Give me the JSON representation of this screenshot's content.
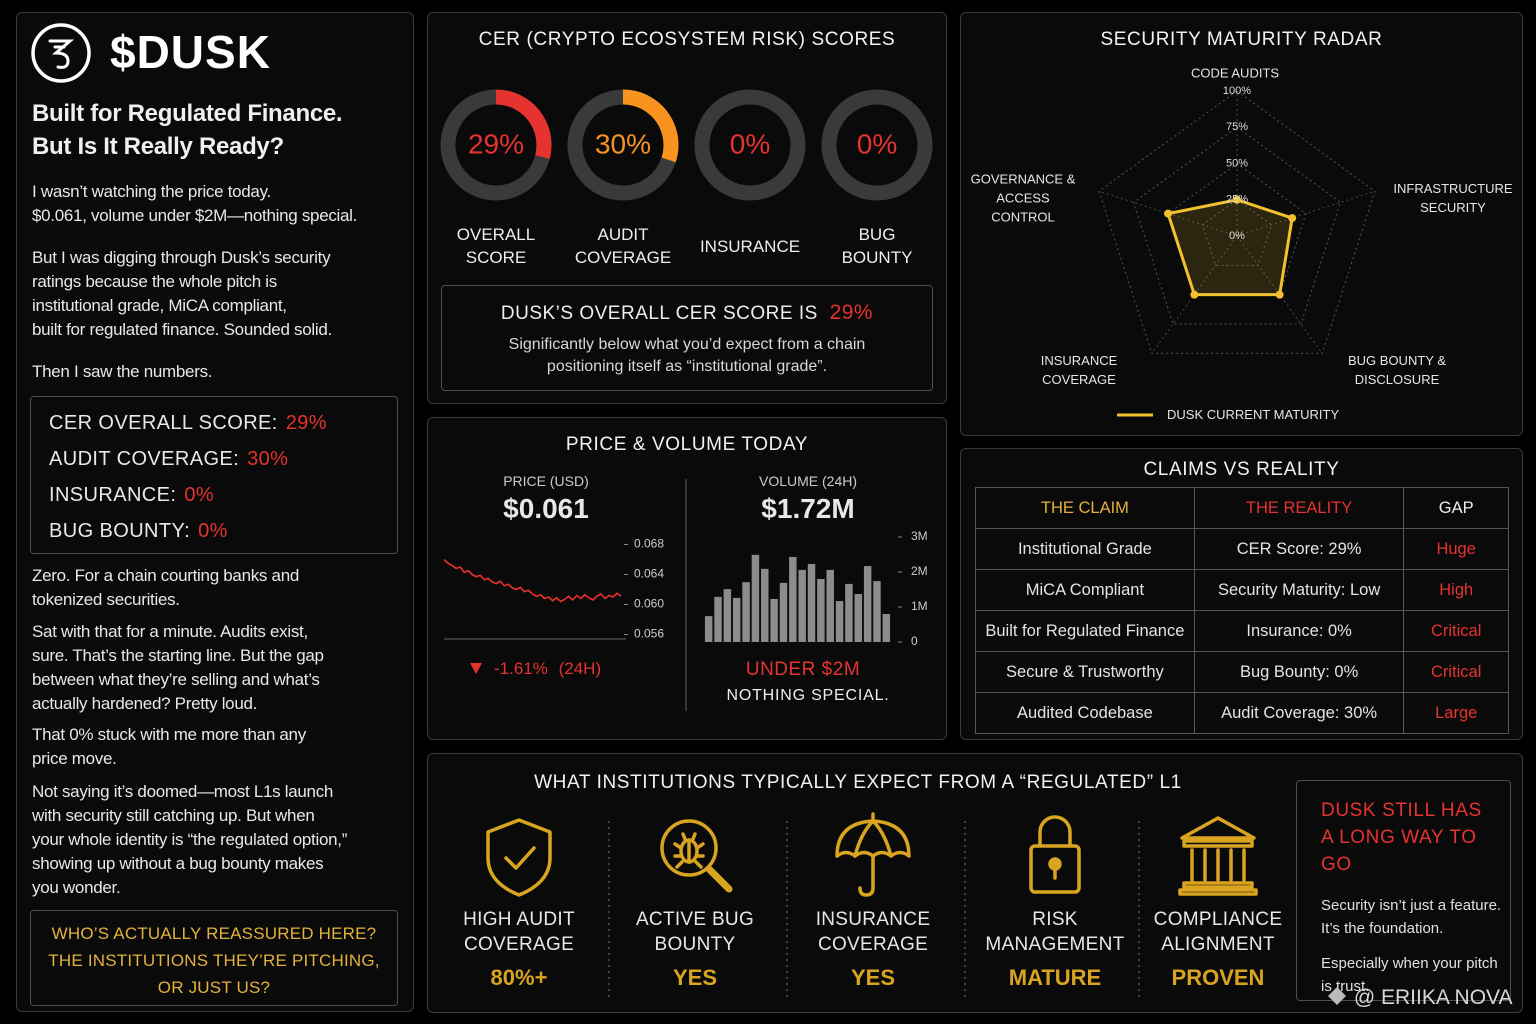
{
  "left": {
    "logo": "$DUSK",
    "heading": [
      "Built for Regulated Finance.",
      "But Is It Really Ready?"
    ],
    "paragraphs": [
      [
        "I wasn’t watching the price today.",
        "$0.061, volume under $2M—nothing special."
      ],
      [
        "But I was digging through Dusk’s security",
        "ratings because the whole pitch is",
        "institutional grade, MiCA compliant,",
        "built for regulated finance. Sounded solid."
      ],
      [
        "Then I saw the numbers."
      ]
    ],
    "scores": [
      {
        "label": "CER OVERALL SCORE:",
        "value": "29%"
      },
      {
        "label": "AUDIT COVERAGE:",
        "value": "30%"
      },
      {
        "label": "INSURANCE:",
        "value": "0%"
      },
      {
        "label": "BUG BOUNTY:",
        "value": "0%"
      }
    ],
    "paragraphs_after": [
      [
        "Zero. For a chain courting banks and",
        "tokenized securities."
      ],
      [
        "Sat with that for a minute. Audits exist,",
        "sure. That’s the starting line. But the gap",
        "between what they’re selling and what’s",
        "actually hardened? Pretty loud."
      ],
      [
        "That 0% stuck with me more than any",
        "price move."
      ],
      [
        "Not saying it’s doomed—most L1s launch",
        "with security still catching up. But when",
        "your whole identity is “the regulated option,”",
        "showing up without a bug bounty makes",
        "you wonder."
      ]
    ],
    "callout": [
      "WHO’S ACTUALLY REASSURED HERE?",
      "THE INSTITUTIONS THEY’RE PITCHING,",
      "OR JUST US?"
    ]
  },
  "cer_panel": {
    "summary_label": "DUSK’S OVERALL CER SCORE IS",
    "summary_value": "29%",
    "summary_text": [
      "Significantly below what you’d expect from a chain",
      "positioning itself as “institutional grade”."
    ]
  },
  "price_panel": {
    "title": "PRICE & VOLUME TODAY",
    "price_label": "PRICE (USD)",
    "price": "$0.061",
    "change": "-1.61%",
    "change_period": "(24H)",
    "volume_label": "VOLUME (24H)",
    "volume": "$1.72M",
    "volume_note": "UNDER $2M",
    "volume_comment": "NOTHING SPECIAL."
  },
  "claims": {
    "title": "CLAIMS VS REALITY",
    "header": [
      "THE CLAIM",
      "THE REALITY",
      "GAP"
    ],
    "rows": [
      [
        "Institutional Grade",
        "CER Score: 29%",
        "Huge"
      ],
      [
        "MiCA Compliant",
        "Security Maturity: Low",
        "High"
      ],
      [
        "Built for Regulated Finance",
        "Insurance: 0%",
        "Critical"
      ],
      [
        "Secure & Trustworthy",
        "Bug Bounty: 0%",
        "Critical"
      ],
      [
        "Audited Codebase",
        "Audit Coverage: 30%",
        "Large"
      ]
    ]
  },
  "expectations": {
    "title": "WHAT INSTITUTIONS TYPICALLY EXPECT FROM A “REGULATED” L1",
    "items": [
      {
        "label": [
          "HIGH AUDIT",
          "COVERAGE"
        ],
        "value": "80%+"
      },
      {
        "label": [
          "ACTIVE BUG",
          "BOUNTY"
        ],
        "value": "YES"
      },
      {
        "label": [
          "INSURANCE",
          "COVERAGE"
        ],
        "value": "YES"
      },
      {
        "label": [
          "RISK",
          "MANAGEMENT"
        ],
        "value": "MATURE"
      },
      {
        "label": [
          "COMPLIANCE",
          "ALIGNMENT"
        ],
        "value": "PROVEN"
      }
    ],
    "callout": {
      "title": [
        "DUSK STILL HAS",
        "A LONG WAY TO GO"
      ],
      "text": [
        [
          "Security isn’t just a feature.",
          "It’s the foundation."
        ],
        [
          "Especially when your pitch",
          "is trust."
        ]
      ]
    }
  },
  "watermark": "@ ERIIKA NOVA",
  "chart_data": [
    {
      "type": "gauge",
      "title": "CER (CRYPTO ECOSYSTEM RISK) SCORES",
      "categories": [
        "OVERALL SCORE",
        "AUDIT COVERAGE",
        "INSURANCE",
        "BUG BOUNTY"
      ],
      "values": [
        29,
        30,
        0,
        0
      ],
      "value_labels": [
        "29%",
        "30%",
        "0%",
        "0%"
      ],
      "colors": [
        "#e5332f",
        "#f7931e",
        "#e5332f",
        "#e5332f"
      ],
      "ylim": [
        0,
        100
      ]
    },
    {
      "type": "radar",
      "title": "SECURITY MATURITY RADAR",
      "categories": [
        "CODE AUDITS",
        "INFRASTRUCTURE SECURITY",
        "BUG BOUNTY & DISCLOSURE",
        "INSURANCE COVERAGE",
        "GOVERNANCE & ACCESS CONTROL"
      ],
      "ylim": [
        0,
        100
      ],
      "yticks": [
        {
          "value": 0,
          "label": "0%"
        },
        {
          "value": 25,
          "label": "25%"
        },
        {
          "value": 50,
          "label": "50%"
        },
        {
          "value": 75,
          "label": "75%"
        },
        {
          "value": 100,
          "label": "100%"
        }
      ],
      "series": [
        {
          "name": "DUSK CURRENT MATURITY",
          "color": "#f2c12e",
          "values": [
            25,
            40,
            50,
            50,
            50
          ]
        }
      ]
    },
    {
      "type": "line",
      "color": "#e8302e",
      "ylim": [
        0.055,
        0.069
      ],
      "yticks": [
        0.056,
        {
          "value": 0.06,
          "label": "0.060"
        },
        0.064,
        0.068
      ],
      "values": [
        0.066,
        0.0655,
        0.0652,
        0.0648,
        0.065,
        0.0643,
        0.0645,
        0.064,
        0.0637,
        0.0639,
        0.0633,
        0.0635,
        0.063,
        0.0628,
        0.0631,
        0.0625,
        0.0627,
        0.0622,
        0.062,
        0.0623,
        0.0617,
        0.0619,
        0.0614,
        0.0611,
        0.0613,
        0.0608,
        0.061,
        0.0605,
        0.0609,
        0.0604,
        0.0607,
        0.0611,
        0.0606,
        0.0612,
        0.0608,
        0.0613,
        0.0609,
        0.0606,
        0.0611,
        0.0614,
        0.0608,
        0.0612,
        0.061,
        0.0615,
        0.0611
      ]
    },
    {
      "type": "bar",
      "color": "#8c8c8c",
      "ylim": [
        0,
        3000000
      ],
      "yticks": [
        0,
        {
          "value": 1000000,
          "label": "1M"
        },
        {
          "value": 2000000,
          "label": "2M"
        },
        {
          "value": 3000000,
          "label": "3M"
        }
      ],
      "values": [
        740000,
        1290000,
        1510000,
        1260000,
        1710000,
        2490000,
        2090000,
        1230000,
        1690000,
        2430000,
        2060000,
        2230000,
        1800000,
        2060000,
        1170000,
        1660000,
        1370000,
        2170000,
        1740000,
        800000
      ]
    }
  ]
}
